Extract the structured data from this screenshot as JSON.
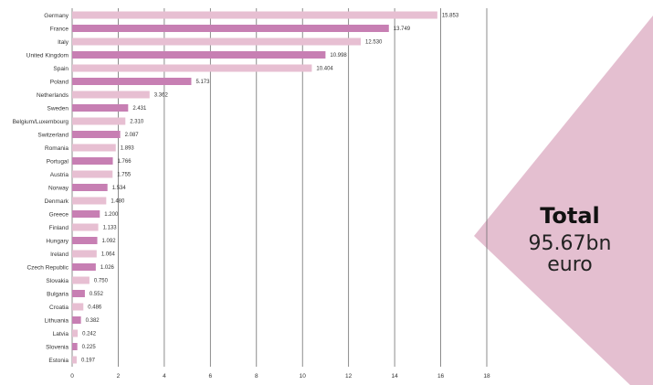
{
  "colors": {
    "dark_bar": "#c77fb3",
    "light_bar": "#e7bfd2",
    "diamond": "#e4bfd0"
  },
  "total": {
    "title": "Total",
    "value_line1": "95.67bn",
    "value_line2": "euro"
  },
  "chart_data": {
    "type": "bar",
    "orientation": "horizontal",
    "title": "",
    "xlabel": "",
    "ylabel": "",
    "xlim": [
      0,
      18
    ],
    "x_ticks": [
      "0",
      "2",
      "4",
      "6",
      "8",
      "10",
      "12",
      "14",
      "16",
      "18"
    ],
    "grid": true,
    "categories": [
      "Germany",
      "France",
      "Italy",
      "United Kingdom",
      "Spain",
      "Poland",
      "Netherlands",
      "Sweden",
      "Belgium/Luxembourg",
      "Switzerland",
      "Romania",
      "Portugal",
      "Austria",
      "Norway",
      "Denmark",
      "Greece",
      "Finland",
      "Hungary",
      "Ireland",
      "Czech Republic",
      "Slovakia",
      "Bulgaria",
      "Croatia",
      "Lithuania",
      "Latvia",
      "Slovenia",
      "Estonia"
    ],
    "values": [
      15.853,
      13.749,
      12.53,
      10.998,
      10.404,
      5.173,
      3.362,
      2.431,
      2.31,
      2.087,
      1.893,
      1.766,
      1.755,
      1.534,
      1.48,
      1.2,
      1.133,
      1.092,
      1.064,
      1.026,
      0.75,
      0.552,
      0.486,
      0.382,
      0.242,
      0.225,
      0.197
    ],
    "value_labels": [
      "15.853",
      "13.749",
      "12.530",
      "10.998",
      "10.404",
      "5.173",
      "3.362",
      "2.431",
      "2.310",
      "2.087",
      "1.893",
      "1.766",
      "1.755",
      "1.534",
      "1.480",
      "1.200",
      "1.133",
      "1.092",
      "1.064",
      "1.026",
      "0.750",
      "0.552",
      "0.486",
      "0.382",
      "0.242",
      "0.225",
      "0.197"
    ],
    "bar_shades": [
      "light",
      "dark",
      "light",
      "dark",
      "light",
      "dark",
      "light",
      "dark",
      "light",
      "dark",
      "light",
      "dark",
      "light",
      "dark",
      "light",
      "dark",
      "light",
      "dark",
      "light",
      "dark",
      "light",
      "dark",
      "light",
      "dark",
      "light",
      "dark",
      "light"
    ]
  }
}
